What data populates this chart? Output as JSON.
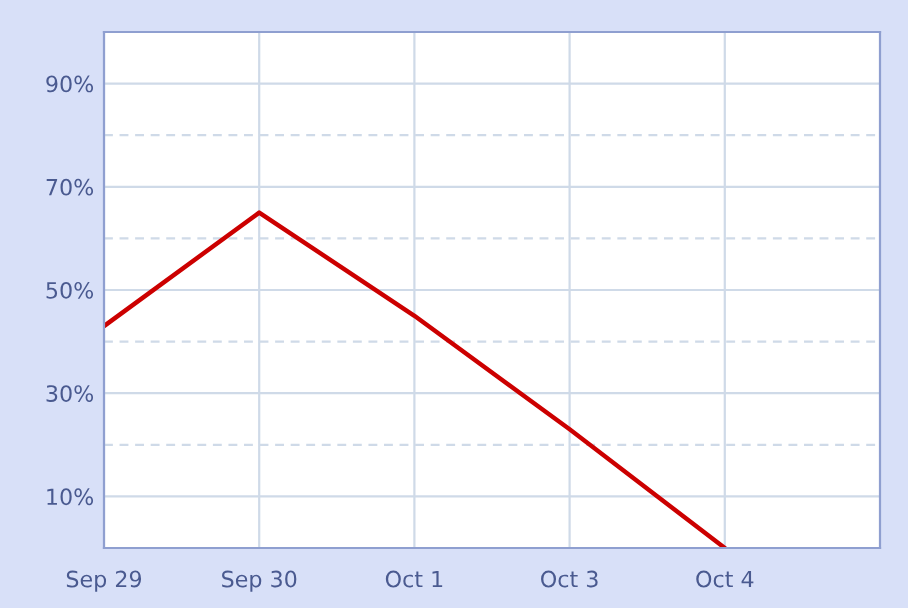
{
  "chart_data": {
    "type": "line",
    "categories": [
      "Sep 29",
      "Sep 30",
      "Oct 1",
      "Oct 3",
      "Oct 4"
    ],
    "series": [
      {
        "color": "#cc0000",
        "values": [
          43,
          65,
          45,
          23,
          0
        ]
      }
    ],
    "ylim": [
      0,
      100
    ],
    "yticks": [
      {
        "value": 10,
        "label": "10%"
      },
      {
        "value": 20,
        "label": null
      },
      {
        "value": 30,
        "label": "30%"
      },
      {
        "value": 40,
        "label": null
      },
      {
        "value": 50,
        "label": "50%"
      },
      {
        "value": 60,
        "label": null
      },
      {
        "value": 70,
        "label": "70%"
      },
      {
        "value": 80,
        "label": null
      },
      {
        "value": 90,
        "label": "90%"
      }
    ],
    "grid": true,
    "legend": false,
    "marker": "none",
    "line_style": "solid"
  }
}
